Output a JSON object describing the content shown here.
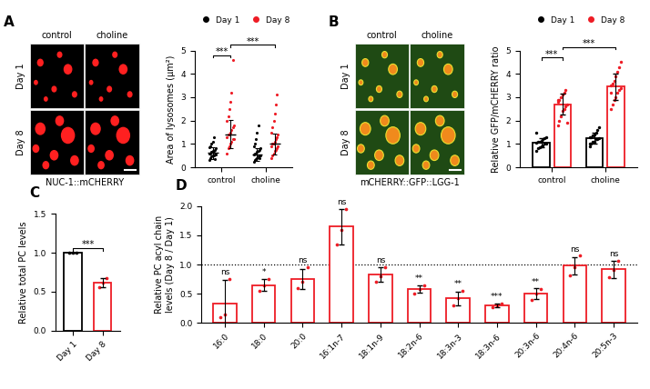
{
  "chart_data": [
    {
      "type": "image",
      "panel": "A",
      "columns": [
        "control",
        "choline"
      ],
      "rows": [
        "Day 1",
        "Day 8"
      ],
      "caption": "NUC-1::mCHERRY",
      "color": "#000000"
    },
    {
      "type": "scatter",
      "categories": [
        "control",
        "choline"
      ],
      "y_label": "Area of lysosomes (μm²)",
      "ylim": [
        0,
        5
      ],
      "yticks": [
        0,
        1,
        2,
        3,
        4,
        5
      ],
      "legend": "upper center",
      "series": [
        {
          "name": "Day 1",
          "color": "#000000",
          "values": [
            [
              0.3,
              0.4,
              0.45,
              0.5,
              0.5,
              0.55,
              0.55,
              0.6,
              0.6,
              0.65,
              0.7,
              0.7,
              0.75,
              0.8,
              0.85,
              0.9,
              1.0,
              1.1,
              1.3,
              0.35
            ],
            [
              0.25,
              0.3,
              0.35,
              0.4,
              0.45,
              0.5,
              0.5,
              0.55,
              0.6,
              0.6,
              0.65,
              0.7,
              0.75,
              0.8,
              0.9,
              1.0,
              1.2,
              1.5,
              1.8,
              0.4
            ]
          ],
          "mean": [
            0.62,
            0.55
          ],
          "sd": [
            0.25,
            0.27
          ]
        },
        {
          "name": "Day 8",
          "color": "#ee1c25",
          "values": [
            [
              0.6,
              0.8,
              0.9,
              1.0,
              1.1,
              1.2,
              1.2,
              1.3,
              1.4,
              1.4,
              1.5,
              1.6,
              1.7,
              1.8,
              2.0,
              2.2,
              2.5,
              2.8,
              3.2,
              4.6
            ],
            [
              0.4,
              0.5,
              0.6,
              0.7,
              0.75,
              0.8,
              0.9,
              0.9,
              1.0,
              1.0,
              1.1,
              1.2,
              1.3,
              1.4,
              1.5,
              1.7,
              2.0,
              2.3,
              2.7,
              3.1
            ]
          ],
          "mean": [
            1.42,
            1.0
          ],
          "sd": [
            0.6,
            0.45
          ]
        }
      ],
      "comparisons": [
        {
          "a": [
            0,
            0
          ],
          "b": [
            0,
            1
          ],
          "label": "***"
        },
        {
          "a": [
            0,
            1
          ],
          "b": [
            1,
            1
          ],
          "label": "***"
        }
      ]
    },
    {
      "type": "image",
      "panel": "B",
      "columns": [
        "control",
        "choline"
      ],
      "rows": [
        "Day 1",
        "Day 8"
      ],
      "caption": "mCHERRY::GFP::LGG-1",
      "color": "#1f4a14"
    },
    {
      "type": "bar",
      "categories": [
        "control",
        "choline"
      ],
      "y_label": "Relative GFP/mCHERRY ratio",
      "ylim": [
        0,
        5
      ],
      "yticks": [
        0,
        1,
        2,
        3,
        4,
        5
      ],
      "legend": "upper center",
      "series": [
        {
          "name": "Day 1",
          "color": "#000000",
          "values": [
            1.05,
            1.25
          ],
          "errors": [
            0.2,
            0.22
          ],
          "points": [
            [
              0.7,
              0.8,
              0.85,
              0.9,
              0.95,
              1.0,
              1.0,
              1.05,
              1.1,
              1.1,
              1.15,
              1.2,
              1.25,
              1.3,
              1.5
            ],
            [
              0.9,
              1.0,
              1.1,
              1.1,
              1.2,
              1.2,
              1.25,
              1.3,
              1.3,
              1.35,
              1.4,
              1.5,
              1.6,
              1.7,
              1.0
            ]
          ]
        },
        {
          "name": "Day 8",
          "color": "#ee1c25",
          "values": [
            2.7,
            3.45
          ],
          "errors": [
            0.45,
            0.55
          ],
          "points": [
            [
              1.8,
              2.0,
              2.2,
              2.4,
              2.5,
              2.6,
              2.7,
              2.8,
              2.9,
              3.0,
              3.1,
              3.2,
              3.3,
              1.9,
              2.9
            ],
            [
              2.5,
              2.7,
              2.9,
              3.0,
              3.2,
              3.3,
              3.4,
              3.5,
              3.6,
              3.7,
              3.9,
              4.1,
              4.3,
              4.5,
              3.2
            ]
          ]
        }
      ],
      "comparisons": [
        {
          "a": [
            0,
            0
          ],
          "b": [
            0,
            1
          ],
          "label": "***"
        },
        {
          "a": [
            0,
            1
          ],
          "b": [
            1,
            1
          ],
          "label": "***"
        }
      ]
    },
    {
      "type": "bar",
      "panel": "C",
      "categories": [
        "Day 1",
        "Day 8"
      ],
      "values": [
        1.0,
        0.62
      ],
      "errors": [
        0.0,
        0.06
      ],
      "points": [
        [
          1.0,
          1.0,
          1.0
        ],
        [
          0.56,
          0.62,
          0.68
        ]
      ],
      "colors": [
        "#000000",
        "#ee1c25"
      ],
      "y_label": "Relative total PC levels",
      "ylim": [
        0.0,
        1.5
      ],
      "yticks": [
        0.0,
        0.5,
        1.0,
        1.5
      ],
      "comparisons": [
        {
          "a": 0,
          "b": 1,
          "label": "***"
        }
      ]
    },
    {
      "type": "bar",
      "panel": "D",
      "categories": [
        "16:0",
        "18:0",
        "20:0",
        "16:1n-7",
        "18:1n-9",
        "18:2n-6",
        "18:3n-3",
        "18:3n-6",
        "20:3n-6",
        "20:4n-6",
        "20:5n-3"
      ],
      "values": [
        0.33,
        0.65,
        0.75,
        1.65,
        0.83,
        0.58,
        0.42,
        0.3,
        0.5,
        0.98,
        0.92
      ],
      "errors": [
        0.4,
        0.1,
        0.17,
        0.3,
        0.12,
        0.07,
        0.12,
        0.03,
        0.09,
        0.15,
        0.15
      ],
      "points": [
        [
          0.1,
          0.15,
          0.75
        ],
        [
          0.55,
          0.65,
          0.75
        ],
        [
          0.6,
          0.7,
          0.95
        ],
        [
          1.35,
          1.6,
          1.95
        ],
        [
          0.7,
          0.8,
          0.95
        ],
        [
          0.5,
          0.58,
          0.65
        ],
        [
          0.3,
          0.42,
          0.55
        ],
        [
          0.27,
          0.3,
          0.33
        ],
        [
          0.4,
          0.5,
          0.58
        ],
        [
          0.82,
          0.95,
          1.15
        ],
        [
          0.78,
          0.9,
          1.07
        ]
      ],
      "significance": [
        "ns",
        "*",
        "ns",
        "ns",
        "ns",
        "**",
        "**",
        "***",
        "**",
        "ns",
        "ns"
      ],
      "color": "#ee1c25",
      "y_label": "Relative PC acyl chain\nlevels (Day 8 / Day 1)",
      "ylim": [
        0.0,
        2.0
      ],
      "yticks": [
        0.0,
        0.5,
        1.0,
        1.5,
        2.0
      ],
      "reference_line": 1.0
    }
  ]
}
